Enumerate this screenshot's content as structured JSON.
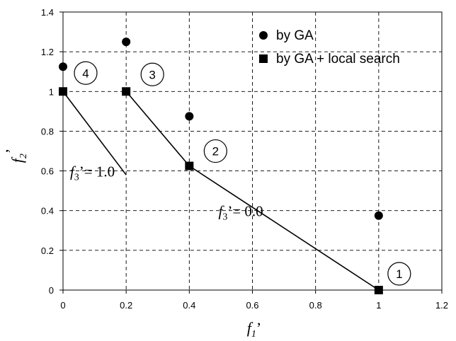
{
  "chart_data": {
    "type": "scatter",
    "xlabel": {
      "main": "f",
      "sub": "1",
      "prime": "’"
    },
    "ylabel": {
      "main": "f",
      "sub": "2",
      "prime": "’"
    },
    "xlim": [
      0,
      1.2
    ],
    "ylim": [
      0,
      1.4
    ],
    "xticks": [
      "0",
      "0.2",
      "0.4",
      "0.6",
      "0.8",
      "1",
      "1.2"
    ],
    "yticks": [
      "0",
      "0.2",
      "0.4",
      "0.6",
      "0.8",
      "1",
      "1.2",
      "1.4"
    ],
    "xtick_values": [
      0,
      0.2,
      0.4,
      0.6,
      0.8,
      1.0,
      1.2
    ],
    "ytick_values": [
      0,
      0.2,
      0.4,
      0.6,
      0.8,
      1.0,
      1.2,
      1.4
    ],
    "grid": true,
    "legend_position": "top-right",
    "series": [
      {
        "name": "by GA",
        "marker": "circle",
        "color": "#000000",
        "points": [
          [
            0.0,
            1.125
          ],
          [
            0.2,
            1.25
          ],
          [
            0.4,
            0.875
          ],
          [
            1.0,
            0.375
          ]
        ]
      },
      {
        "name": "by GA + local search",
        "marker": "square",
        "color": "#000000",
        "points": [
          [
            0.0,
            1.0
          ],
          [
            0.2,
            1.0
          ],
          [
            0.4,
            0.625
          ],
          [
            1.0,
            0.0
          ]
        ]
      }
    ],
    "lines": [
      {
        "points": [
          [
            0.0,
            1.0
          ],
          [
            0.2,
            0.58
          ]
        ]
      },
      {
        "points": [
          [
            0.2,
            1.0
          ],
          [
            0.4,
            0.625
          ],
          [
            1.0,
            0.0
          ]
        ]
      }
    ],
    "point_labels": [
      {
        "text": "1",
        "x": 1.0,
        "y": 0.0
      },
      {
        "text": "2",
        "x": 0.4,
        "y": 0.625
      },
      {
        "text": "3",
        "x": 0.2,
        "y": 1.0
      },
      {
        "text": "4",
        "x": 0.0,
        "y": 1.0
      }
    ],
    "annotations": [
      {
        "main": "f",
        "sub": "3",
        "rest": "’= 1.0",
        "x": 0.13,
        "y": 0.6
      },
      {
        "main": "f",
        "sub": "3",
        "rest": "’= 0.0",
        "x": 0.6,
        "y": 0.4
      }
    ]
  }
}
